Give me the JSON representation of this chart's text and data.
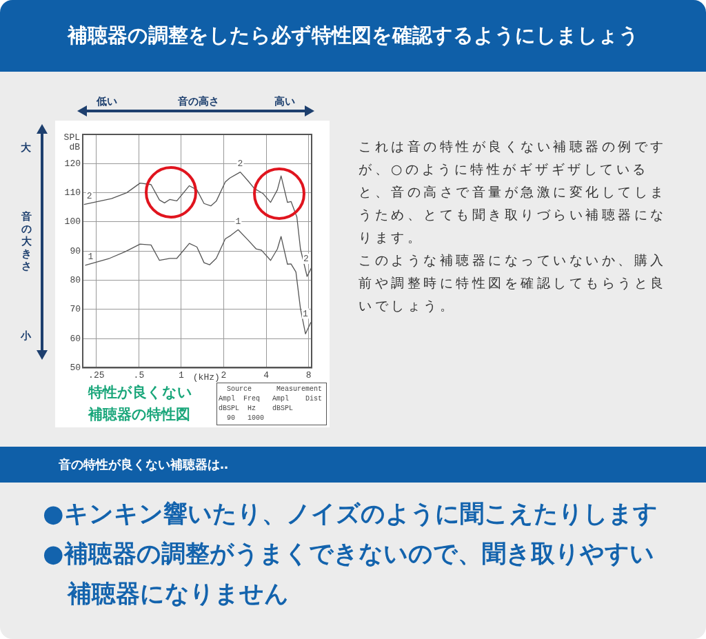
{
  "chart_data": {
    "type": "line",
    "title": "補聴器の調整をしたら必ず特性図を確認するようにしましょう",
    "xlabel": "(kHz)",
    "ylabel": "SPL dB",
    "log": "x",
    "xlim": [
      0.2,
      8.4
    ],
    "xticks": [
      {
        "value": 0.25,
        "label": ".25"
      },
      {
        "value": 0.5,
        "label": ".5"
      },
      1,
      2,
      4,
      8
    ],
    "ylim": [
      50,
      130
    ],
    "yticks": [
      50,
      60,
      70,
      80,
      90,
      100,
      110,
      120
    ],
    "grid": true,
    "legend": false,
    "marker": "none",
    "line_style": "solid",
    "series": [
      {
        "name": "2",
        "color": "#555555",
        "x": [
          0.204,
          0.32,
          0.41,
          0.51,
          0.61,
          0.7,
          0.76,
          0.83,
          0.93,
          1.14,
          1.29,
          1.45,
          1.62,
          1.77,
          2.05,
          2.2,
          2.62,
          2.97,
          3.3,
          3.78,
          4.3,
          4.8,
          5.1,
          5.66,
          6.0,
          6.6,
          7.0,
          7.8,
          8.4
        ],
        "values": [
          106,
          108,
          110,
          113.3,
          112.8,
          107.5,
          106.5,
          107.7,
          107.2,
          112.4,
          111,
          106.3,
          105.5,
          107.1,
          113.7,
          115,
          117.1,
          114.1,
          111.4,
          109.8,
          106.7,
          111,
          115.8,
          106.7,
          107,
          101.7,
          90.7,
          81.3,
          84.4
        ]
      },
      {
        "name": "1",
        "color": "#555555",
        "x": [
          0.208,
          0.31,
          0.4,
          0.51,
          0.61,
          0.7,
          0.83,
          0.93,
          1.14,
          1.29,
          1.45,
          1.59,
          1.77,
          2.05,
          2.25,
          2.53,
          2.97,
          3.4,
          3.7,
          4.3,
          4.8,
          5.1,
          5.66,
          6.0,
          6.5,
          7.0,
          7.6,
          8.3
        ],
        "values": [
          85.1,
          87.5,
          89.8,
          92.4,
          92.1,
          86.8,
          87.5,
          87.5,
          92.6,
          91.4,
          86,
          85.3,
          87.5,
          94.2,
          95.4,
          97.3,
          93.8,
          90.7,
          90.3,
          86.8,
          90.7,
          95,
          85.5,
          85.6,
          82.8,
          70.2,
          61.6,
          65.6
        ]
      }
    ],
    "annotations": [
      "低い",
      "音の高さ",
      "高い",
      "大",
      "音の大きさ",
      "小",
      "これは音の特性が良くない補聴器の例ですが、○のように特性がギザギザしていると、音の高さで音量が急激に変化してしまうため、とても聞き取りづらい補聴器になります。",
      "このような補聴器になっていないか、購入前や調整時に特性図を確認してもらうと良いでしょう。",
      "特性が良くない",
      "補聴器の特性図",
      "  Source      Measurement",
      "Ampl  Freq   Ampl    Dist",
      "dBSPL  Hz    dBSPL",
      "  90   1000",
      "音の特性が良くない補聴器は‥",
      "●キンキン響いたり、ノイズのように聞こえたりします",
      "●補聴器の調整がうまくできないので、聞き取りやすい補聴器になりません"
    ]
  }
}
